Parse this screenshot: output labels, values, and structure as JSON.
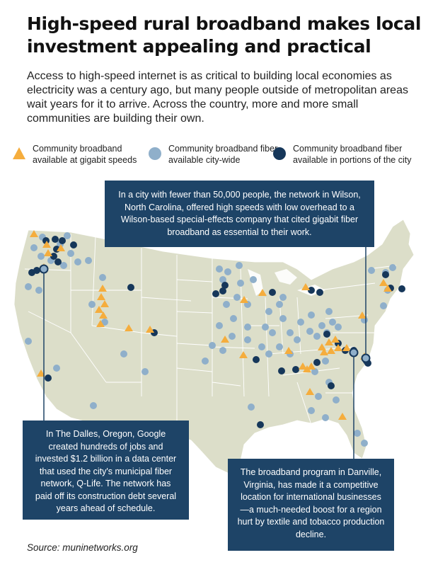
{
  "title": "High-speed rural broadband makes local investment appealing and practical",
  "intro": "Access to high-speed internet is as critical to building local economies as electricity was a century ago, but many people outside of metropolitan areas wait years for it to arrive. Across the country, more and more small communities are building their own.",
  "legend": [
    {
      "label": "Community broadband available at gigabit speeds",
      "symbol": "triangle-icon",
      "color": "#f5ad3d"
    },
    {
      "label": "Community broadband fiber available city-wide",
      "symbol": "light-circle-icon",
      "color": "#8fafca"
    },
    {
      "label": "Community broadband fiber available in portions of the city",
      "symbol": "dark-circle-icon",
      "color": "#16375a"
    }
  ],
  "callouts": {
    "wilson": "In a city with fewer than 50,000 people, the network in Wilson, North Carolina, offered high speeds with low overhead to a Wilson-based special-effects company that cited gigabit fiber broadband as essential to their work.",
    "the_dalles": "In The Dalles, Oregon, Google created hundreds of jobs and invested $1.2 billion in a data center that used the city's municipal fiber network, Q-Life. The network has paid off its construction debt several years ahead of schedule.",
    "danville": "The broadband program in Danville, Virginia, has made it a competitive location for international businesses—a much-needed boost for a region hurt by textile and tobacco production decline."
  },
  "source": "Source: muninetworks.org",
  "colors": {
    "land": "#dcdec9",
    "state_border": "#ffffff",
    "callout_bg": "#1e4467",
    "gigabit": "#f5ad3d",
    "citywide": "#8fafca",
    "partial": "#16375a"
  }
}
